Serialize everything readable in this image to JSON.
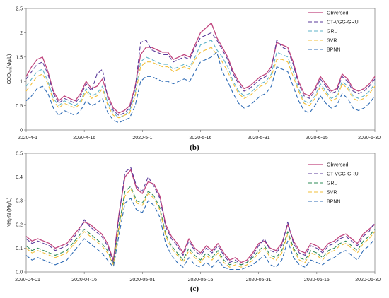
{
  "chart_data": [
    {
      "type": "line",
      "caption": "(b)",
      "ylabel": "COD",
      "ylabel_sub": "Mn",
      "ylabel_unit": "(Mg/L)",
      "ylim": [
        0,
        2.5
      ],
      "yticks": [
        "0",
        "0.5",
        "1",
        "1.5",
        "2",
        "2.5"
      ],
      "x_range": [
        "2020-4-1",
        "2020-6-30"
      ],
      "xticks": [
        "2020-4-1",
        "2020-4-16",
        "2020-5-1",
        "2020-5-16",
        "2020-5-31",
        "2020-6-15",
        "2020-6-30"
      ],
      "x_every_days": 3,
      "legend_position": "top-right",
      "series": [
        {
          "name": "Obversed",
          "color": "#c0457e",
          "dash": "solid",
          "values": [
            1.1,
            1.3,
            1.45,
            1.5,
            1.2,
            0.8,
            0.6,
            0.7,
            0.65,
            0.6,
            0.75,
            1.0,
            0.85,
            0.9,
            1.05,
            0.7,
            0.45,
            0.35,
            0.4,
            0.5,
            0.9,
            1.55,
            1.7,
            1.7,
            1.65,
            1.6,
            1.6,
            1.45,
            1.5,
            1.55,
            1.5,
            1.75,
            2.0,
            2.1,
            2.2,
            1.9,
            1.7,
            1.5,
            1.2,
            1.0,
            0.85,
            0.9,
            1.0,
            1.1,
            1.15,
            1.3,
            1.8,
            1.75,
            1.7,
            1.4,
            1.0,
            0.75,
            0.7,
            0.85,
            1.1,
            0.95,
            0.8,
            0.85,
            1.15,
            1.05,
            0.85,
            0.8,
            0.85,
            0.95,
            1.1
          ]
        },
        {
          "name": "CT-VGG-GRU",
          "color": "#5a3a9a",
          "dash": "6,3",
          "values": [
            1.05,
            1.2,
            1.35,
            1.4,
            1.15,
            0.75,
            0.55,
            0.65,
            0.6,
            0.55,
            0.7,
            0.95,
            0.8,
            1.15,
            1.25,
            0.65,
            0.4,
            0.3,
            0.35,
            0.45,
            0.85,
            1.8,
            1.85,
            1.65,
            1.6,
            1.55,
            1.55,
            1.4,
            1.45,
            1.5,
            1.45,
            1.7,
            1.9,
            1.95,
            2.0,
            1.85,
            1.65,
            1.45,
            1.15,
            0.95,
            0.8,
            0.85,
            0.95,
            1.05,
            1.1,
            1.25,
            1.85,
            1.7,
            1.65,
            1.35,
            0.95,
            0.7,
            0.65,
            0.8,
            1.05,
            0.9,
            0.75,
            0.8,
            1.1,
            1.0,
            0.8,
            0.75,
            0.8,
            0.9,
            1.05
          ]
        },
        {
          "name": "GRU",
          "color": "#5fb3c9",
          "dash": "6,3",
          "values": [
            0.9,
            1.05,
            1.2,
            1.25,
            1.0,
            0.65,
            0.5,
            0.6,
            0.55,
            0.5,
            0.6,
            0.85,
            0.7,
            0.75,
            0.9,
            0.55,
            0.35,
            0.25,
            0.3,
            0.4,
            0.75,
            1.4,
            1.5,
            1.45,
            1.4,
            1.35,
            1.35,
            1.25,
            1.3,
            1.35,
            1.3,
            1.5,
            1.75,
            1.8,
            1.85,
            1.65,
            1.5,
            1.3,
            1.0,
            0.8,
            0.7,
            0.75,
            0.85,
            0.95,
            1.0,
            1.15,
            1.6,
            1.55,
            1.5,
            1.2,
            0.85,
            0.6,
            0.55,
            0.7,
            0.95,
            0.8,
            0.65,
            0.7,
            1.0,
            0.9,
            0.7,
            0.65,
            0.7,
            0.8,
            0.95
          ]
        },
        {
          "name": "SVR",
          "color": "#f2bf3a",
          "dash": "6,3",
          "values": [
            0.8,
            0.95,
            1.1,
            1.15,
            0.95,
            0.6,
            0.45,
            0.55,
            0.5,
            0.45,
            0.55,
            0.8,
            0.65,
            0.7,
            0.85,
            0.5,
            0.3,
            0.25,
            0.3,
            0.35,
            0.7,
            1.3,
            1.4,
            1.4,
            1.35,
            1.3,
            1.3,
            1.2,
            1.25,
            1.3,
            1.25,
            1.45,
            1.6,
            1.65,
            1.7,
            1.55,
            1.4,
            1.2,
            0.95,
            0.75,
            0.65,
            0.7,
            0.8,
            0.9,
            0.95,
            1.1,
            1.45,
            1.45,
            1.4,
            1.1,
            0.8,
            0.55,
            0.5,
            0.65,
            0.9,
            0.75,
            0.6,
            0.65,
            0.95,
            0.85,
            0.65,
            0.6,
            0.65,
            0.75,
            0.9
          ]
        },
        {
          "name": "BPNN",
          "color": "#2e6bb5",
          "dash": "6,3",
          "values": [
            0.6,
            0.7,
            0.85,
            0.9,
            0.75,
            0.45,
            0.3,
            0.4,
            0.35,
            0.3,
            0.4,
            0.6,
            0.5,
            0.55,
            0.65,
            0.35,
            0.2,
            0.15,
            0.2,
            0.25,
            0.5,
            1.0,
            1.1,
            1.1,
            1.05,
            1.0,
            1.0,
            0.95,
            1.0,
            1.05,
            1.0,
            1.2,
            1.4,
            1.45,
            1.5,
            1.6,
            1.2,
            1.0,
            0.75,
            0.55,
            0.45,
            0.5,
            0.6,
            0.7,
            0.75,
            0.9,
            1.3,
            1.25,
            1.2,
            0.9,
            0.6,
            0.4,
            0.35,
            0.5,
            0.7,
            0.55,
            0.45,
            0.5,
            0.75,
            0.65,
            0.45,
            0.4,
            0.45,
            0.55,
            0.7
          ]
        }
      ]
    },
    {
      "type": "line",
      "caption": "(c)",
      "ylabel": "NH",
      "ylabel_sub": "3",
      "ylabel_unit": "-N (Mg/L)",
      "ylim": [
        0,
        0.5
      ],
      "yticks": [
        "0.0",
        "0.1",
        "0.2",
        "0.3",
        "0.4",
        "0.5"
      ],
      "x_range": [
        "2020-04-01",
        "2020-06-30"
      ],
      "xticks": [
        "2020-04-01",
        "2020-04-16",
        "2020-05-01",
        "2020-05-16",
        "2020-05-31",
        "2020-06-15",
        "2020-06-30"
      ],
      "x_every_days": 3,
      "legend_position": "top-right",
      "series": [
        {
          "name": "Obversed",
          "color": "#c0457e",
          "dash": "solid",
          "values": [
            0.15,
            0.13,
            0.14,
            0.13,
            0.12,
            0.1,
            0.11,
            0.12,
            0.15,
            0.18,
            0.21,
            0.2,
            0.18,
            0.16,
            0.12,
            0.05,
            0.25,
            0.4,
            0.43,
            0.35,
            0.33,
            0.38,
            0.37,
            0.32,
            0.2,
            0.15,
            0.12,
            0.08,
            0.14,
            0.1,
            0.08,
            0.11,
            0.09,
            0.12,
            0.08,
            0.05,
            0.06,
            0.04,
            0.05,
            0.08,
            0.12,
            0.13,
            0.1,
            0.09,
            0.12,
            0.2,
            0.13,
            0.09,
            0.08,
            0.12,
            0.11,
            0.09,
            0.12,
            0.13,
            0.15,
            0.16,
            0.14,
            0.12,
            0.16,
            0.18,
            0.2
          ]
        },
        {
          "name": "CT-VGG-GRU",
          "color": "#5a3a9a",
          "dash": "6,3",
          "values": [
            0.14,
            0.12,
            0.13,
            0.12,
            0.11,
            0.09,
            0.1,
            0.11,
            0.14,
            0.17,
            0.22,
            0.19,
            0.17,
            0.15,
            0.11,
            0.04,
            0.24,
            0.42,
            0.44,
            0.36,
            0.34,
            0.4,
            0.36,
            0.31,
            0.19,
            0.14,
            0.11,
            0.07,
            0.13,
            0.09,
            0.07,
            0.1,
            0.08,
            0.11,
            0.07,
            0.04,
            0.05,
            0.03,
            0.04,
            0.07,
            0.11,
            0.14,
            0.09,
            0.08,
            0.11,
            0.21,
            0.12,
            0.08,
            0.07,
            0.11,
            0.1,
            0.08,
            0.11,
            0.12,
            0.14,
            0.15,
            0.13,
            0.11,
            0.15,
            0.17,
            0.21
          ]
        },
        {
          "name": "GRU",
          "color": "#2e8b57",
          "dash": "6,3",
          "values": [
            0.11,
            0.09,
            0.1,
            0.09,
            0.08,
            0.07,
            0.08,
            0.09,
            0.12,
            0.15,
            0.18,
            0.16,
            0.14,
            0.12,
            0.09,
            0.03,
            0.2,
            0.34,
            0.36,
            0.3,
            0.29,
            0.34,
            0.32,
            0.27,
            0.16,
            0.11,
            0.08,
            0.05,
            0.1,
            0.07,
            0.05,
            0.08,
            0.06,
            0.09,
            0.05,
            0.03,
            0.04,
            0.03,
            0.04,
            0.06,
            0.09,
            0.11,
            0.07,
            0.06,
            0.09,
            0.17,
            0.1,
            0.06,
            0.05,
            0.09,
            0.08,
            0.06,
            0.09,
            0.1,
            0.12,
            0.13,
            0.11,
            0.09,
            0.13,
            0.15,
            0.18
          ]
        },
        {
          "name": "SVR",
          "color": "#f2bf3a",
          "dash": "6,3",
          "values": [
            0.1,
            0.08,
            0.09,
            0.08,
            0.07,
            0.06,
            0.07,
            0.08,
            0.11,
            0.14,
            0.17,
            0.15,
            0.13,
            0.11,
            0.08,
            0.03,
            0.19,
            0.32,
            0.35,
            0.29,
            0.28,
            0.33,
            0.31,
            0.26,
            0.15,
            0.1,
            0.07,
            0.04,
            0.09,
            0.06,
            0.04,
            0.07,
            0.05,
            0.08,
            0.04,
            0.02,
            0.03,
            0.02,
            0.03,
            0.05,
            0.08,
            0.1,
            0.06,
            0.05,
            0.08,
            0.16,
            0.09,
            0.05,
            0.04,
            0.08,
            0.07,
            0.05,
            0.08,
            0.09,
            0.11,
            0.12,
            0.1,
            0.08,
            0.12,
            0.14,
            0.17
          ]
        },
        {
          "name": "BPNN",
          "color": "#2e6bb5",
          "dash": "6,3",
          "values": [
            0.07,
            0.05,
            0.06,
            0.05,
            0.04,
            0.03,
            0.04,
            0.05,
            0.08,
            0.11,
            0.14,
            0.12,
            0.1,
            0.08,
            0.05,
            0.02,
            0.16,
            0.29,
            0.31,
            0.26,
            0.25,
            0.3,
            0.28,
            0.23,
            0.12,
            0.07,
            0.04,
            0.02,
            0.06,
            0.03,
            0.02,
            0.04,
            0.02,
            0.05,
            0.02,
            0.01,
            0.01,
            0.01,
            0.02,
            0.03,
            0.05,
            0.07,
            0.03,
            0.02,
            0.05,
            0.13,
            0.06,
            0.03,
            0.02,
            0.05,
            0.04,
            0.03,
            0.05,
            0.06,
            0.08,
            0.09,
            0.07,
            0.05,
            0.09,
            0.11,
            0.14
          ]
        }
      ]
    }
  ]
}
